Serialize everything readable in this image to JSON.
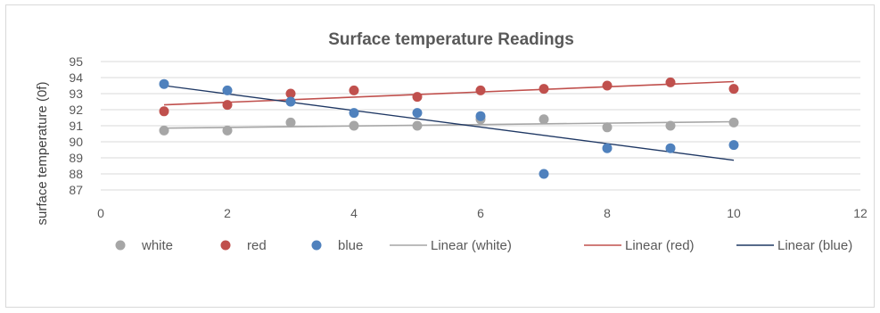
{
  "chart_data": {
    "type": "scatter",
    "title": "Surface temperature Readings",
    "xlabel": "",
    "ylabel": "surface temperature (0f)",
    "xlim": [
      0,
      12
    ],
    "ylim": [
      87,
      95
    ],
    "x_ticks": [
      0,
      2,
      4,
      6,
      8,
      10,
      12
    ],
    "y_ticks": [
      87,
      88,
      89,
      90,
      91,
      92,
      93,
      94,
      95
    ],
    "grid": true,
    "legend_position": "bottom",
    "series": [
      {
        "name": "white",
        "color": "#a6a6a6",
        "x": [
          1,
          2,
          3,
          4,
          5,
          6,
          7,
          8,
          9,
          10
        ],
        "y": [
          90.7,
          90.7,
          91.2,
          91.0,
          91.0,
          91.4,
          91.4,
          90.9,
          91.0,
          91.2
        ]
      },
      {
        "name": "red",
        "color": "#c0504d",
        "x": [
          1,
          2,
          3,
          4,
          5,
          6,
          7,
          8,
          9,
          10
        ],
        "y": [
          91.9,
          92.3,
          93.0,
          93.2,
          92.8,
          93.2,
          93.3,
          93.5,
          93.7,
          93.3
        ]
      },
      {
        "name": "blue",
        "color": "#4f81bd",
        "x": [
          1,
          2,
          3,
          4,
          5,
          6,
          7,
          8,
          9,
          10
        ],
        "y": [
          93.6,
          93.2,
          92.5,
          91.8,
          91.8,
          91.6,
          88.0,
          89.6,
          89.6,
          89.8
        ]
      }
    ],
    "trendlines": [
      {
        "name": "Linear (white)",
        "color": "#a6a6a6",
        "x": [
          1,
          10
        ],
        "y": [
          90.85,
          91.25
        ]
      },
      {
        "name": "Linear (red)",
        "color": "#c0504d",
        "x": [
          1,
          10
        ],
        "y": [
          92.3,
          93.75
        ]
      },
      {
        "name": "Linear (blue)",
        "color": "#1f3864",
        "x": [
          1,
          10
        ],
        "y": [
          93.5,
          88.85
        ]
      }
    ]
  }
}
